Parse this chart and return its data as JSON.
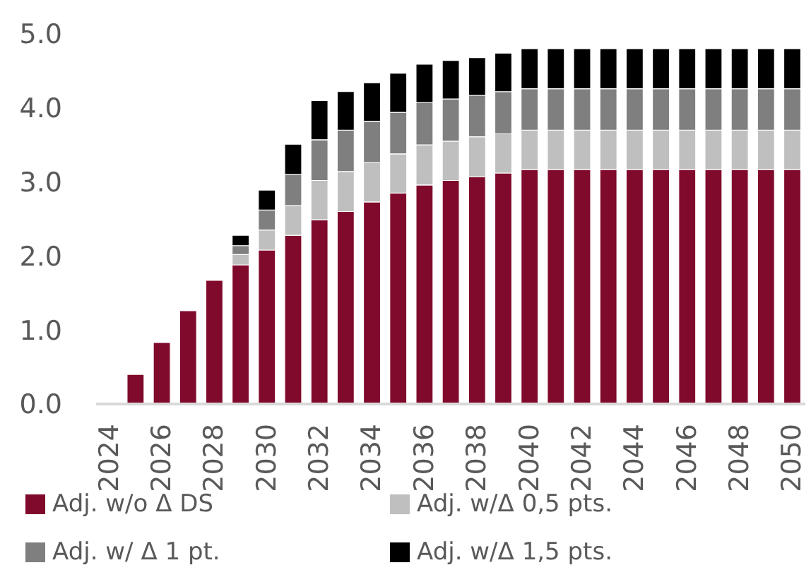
{
  "chart_data": {
    "type": "bar",
    "stacked": true,
    "categories": [
      "2024",
      null,
      "2026",
      null,
      "2028",
      null,
      "2030",
      null,
      "2032",
      null,
      "2034",
      null,
      "2036",
      null,
      "2038",
      null,
      "2040",
      null,
      "2042",
      null,
      "2044",
      null,
      "2046",
      null,
      "2048",
      null,
      "2050"
    ],
    "series": [
      {
        "name": "Adj. w/o Δ DS",
        "color": "#800a2b",
        "values": [
          0,
          0.4,
          0.83,
          1.26,
          1.67,
          1.88,
          2.08,
          2.28,
          2.49,
          2.6,
          2.73,
          2.85,
          2.96,
          3.02,
          3.07,
          3.12,
          3.17,
          3.17,
          3.17,
          3.17,
          3.17,
          3.17,
          3.17,
          3.17,
          3.17,
          3.17,
          3.17
        ]
      },
      {
        "name": "Adj. w/Δ 0,5 pts.",
        "color": "#bfbfbf",
        "values": [
          null,
          null,
          null,
          null,
          null,
          0.14,
          0.27,
          0.4,
          0.53,
          0.54,
          0.53,
          0.53,
          0.54,
          0.53,
          0.54,
          0.53,
          0.53,
          0.53,
          0.53,
          0.53,
          0.53,
          0.53,
          0.53,
          0.53,
          0.53,
          0.53,
          0.53
        ]
      },
      {
        "name": "Adj. w/ Δ 1 pt.",
        "color": "#7f7f7f",
        "values": [
          null,
          null,
          null,
          null,
          null,
          0.12,
          0.27,
          0.42,
          0.55,
          0.56,
          0.56,
          0.56,
          0.57,
          0.57,
          0.56,
          0.57,
          0.56,
          0.56,
          0.56,
          0.56,
          0.56,
          0.56,
          0.56,
          0.56,
          0.56,
          0.56,
          0.56
        ]
      },
      {
        "name": "Adj. w/Δ 1,5 pts.",
        "color": "#000000",
        "values": [
          null,
          null,
          null,
          null,
          null,
          0.14,
          0.27,
          0.41,
          0.53,
          0.52,
          0.52,
          0.53,
          0.52,
          0.52,
          0.51,
          0.52,
          0.54,
          0.54,
          0.54,
          0.54,
          0.54,
          0.54,
          0.54,
          0.54,
          0.54,
          0.54,
          0.54
        ]
      }
    ],
    "ylim": [
      0,
      5
    ],
    "yticks": [
      {
        "value": 0,
        "label": "0.0"
      },
      {
        "value": 1,
        "label": "1.0"
      },
      {
        "value": 2,
        "label": "2.0"
      },
      {
        "value": 3,
        "label": "3.0"
      },
      {
        "value": 4,
        "label": "4.0"
      },
      {
        "value": 5,
        "label": "5.0"
      }
    ],
    "grid": false,
    "legend": "bottom"
  }
}
